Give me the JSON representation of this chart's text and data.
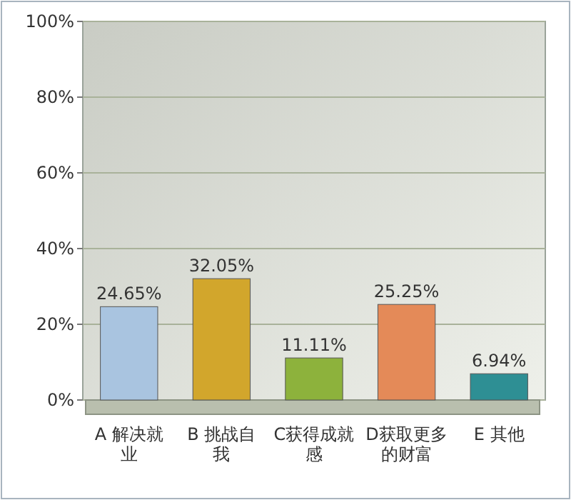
{
  "chart_data": {
    "type": "bar",
    "categories": [
      "A 解决就业",
      "B 挑战自我",
      "C获得成就感",
      "D获取更多的财富",
      "E 其他"
    ],
    "values": [
      24.65,
      32.05,
      11.11,
      25.25,
      6.94
    ],
    "value_labels": [
      "24.65%",
      "32.05%",
      "11.11%",
      "25.25%",
      "6.94%"
    ],
    "colors": [
      "#a9c4e0",
      "#d2a62c",
      "#8db23c",
      "#e48a58",
      "#2e8f94"
    ],
    "ylim": [
      0,
      100
    ],
    "yticks": [
      {
        "value": 0,
        "label": "0%"
      },
      {
        "value": 20,
        "label": "20%"
      },
      {
        "value": 40,
        "label": "40%"
      },
      {
        "value": 60,
        "label": "60%"
      },
      {
        "value": 80,
        "label": "80%"
      },
      {
        "value": 100,
        "label": "100%"
      }
    ],
    "grid": "y"
  }
}
